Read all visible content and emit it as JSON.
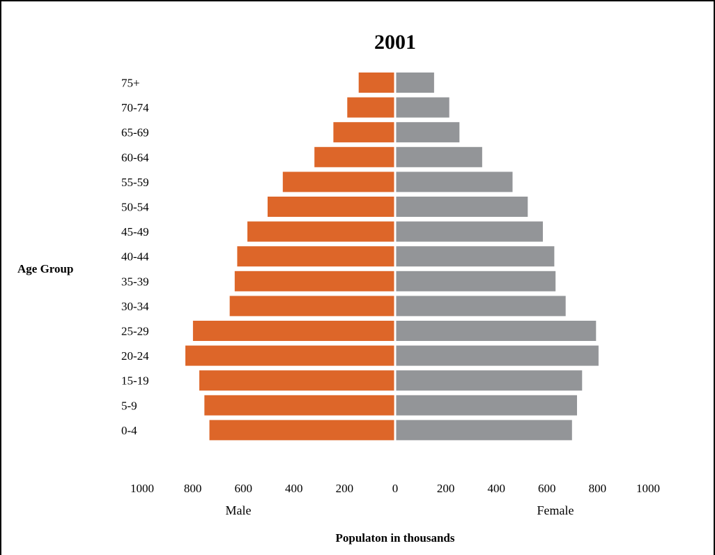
{
  "chart_data": {
    "type": "bar",
    "orientation": "horizontal",
    "subtype": "population-pyramid",
    "title": "2001",
    "ylabel": "Age Group",
    "xlabel": "Populaton in thousands",
    "categories": [
      "0-4",
      "5-9",
      "15-19",
      "20-24",
      "25-29",
      "30-34",
      "35-39",
      "40-44",
      "45-49",
      "50-54",
      "55-59",
      "60-64",
      "65-69",
      "70-74",
      "75+"
    ],
    "series": [
      {
        "name": "Male",
        "color": "#dd6629",
        "values": [
          730,
          750,
          770,
          825,
          795,
          650,
          630,
          620,
          580,
          500,
          440,
          315,
          240,
          185,
          140
        ]
      },
      {
        "name": "Female",
        "color": "#939598",
        "values": [
          695,
          715,
          735,
          800,
          790,
          670,
          630,
          625,
          580,
          520,
          460,
          340,
          250,
          210,
          150
        ]
      }
    ],
    "xlim": [
      -1000,
      1000
    ],
    "x_ticks": [
      "1000",
      "800",
      "600",
      "400",
      "200",
      "0",
      "200",
      "400",
      "600",
      "800",
      "1000"
    ],
    "grid": false,
    "legend": "none"
  }
}
